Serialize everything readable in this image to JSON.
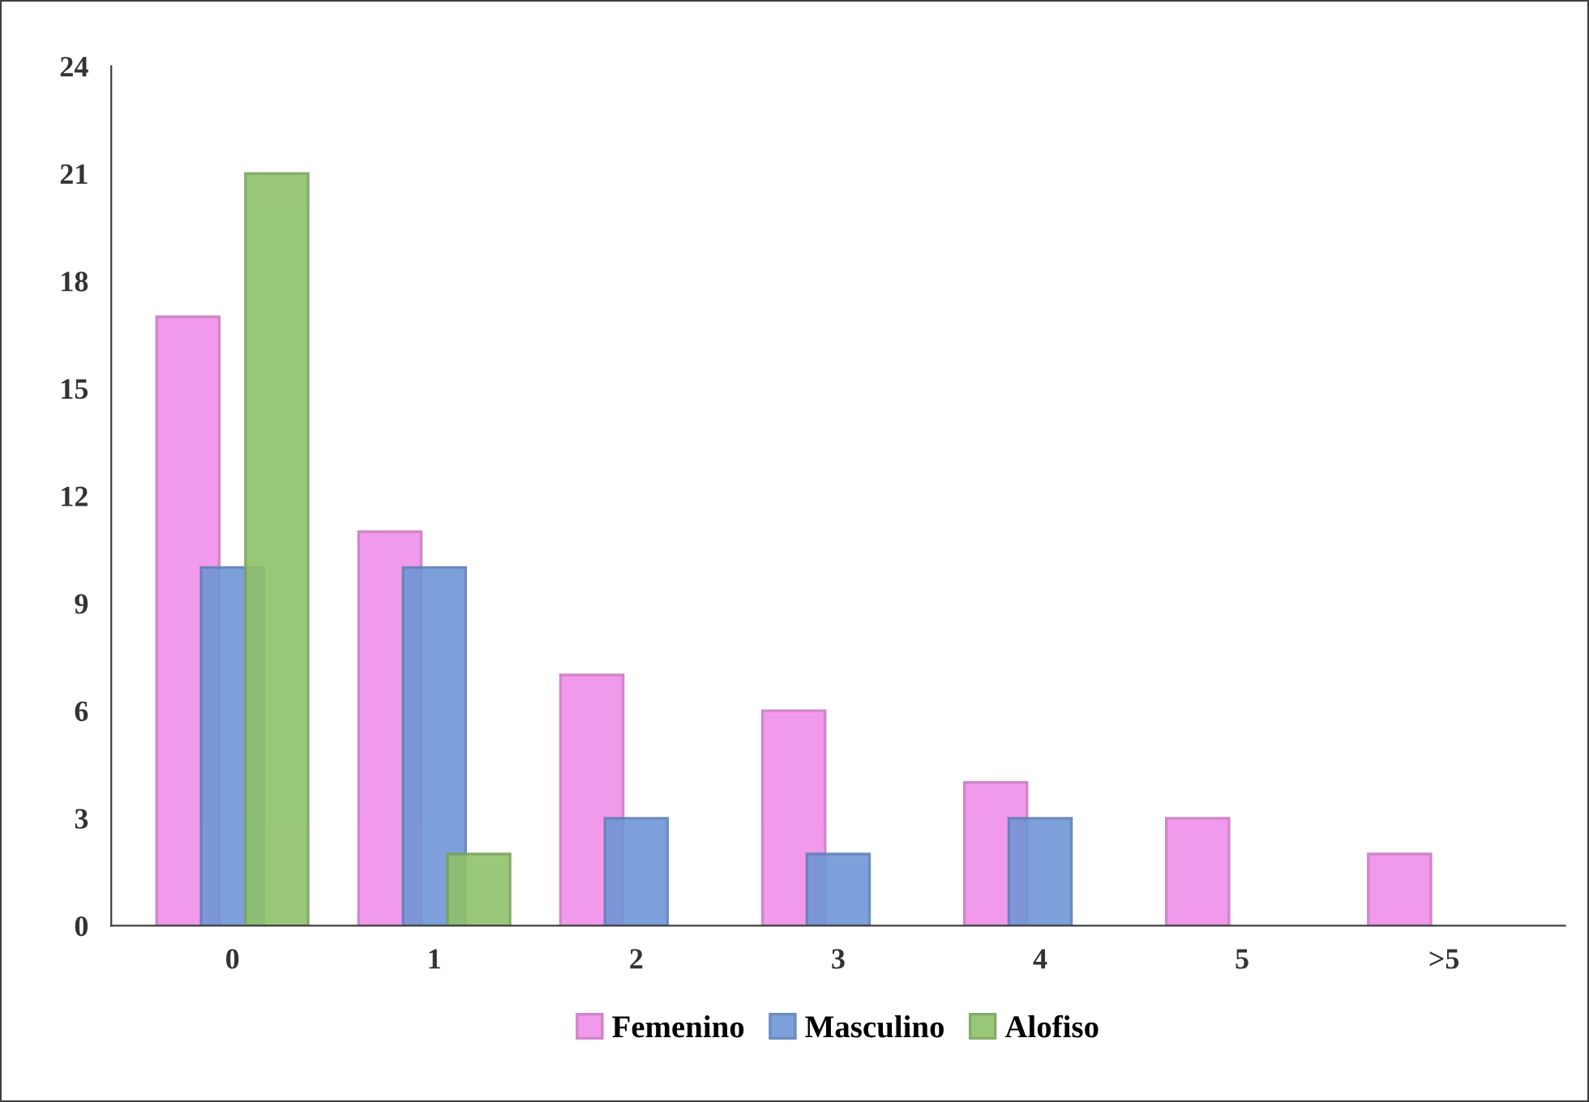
{
  "chart_data": {
    "type": "bar",
    "categories": [
      "0",
      "1",
      "2",
      "3",
      "4",
      "5",
      ">5"
    ],
    "series": [
      {
        "name": "Femenino",
        "color": "#f08ee8",
        "values": [
          17,
          11,
          7,
          6,
          4,
          3,
          2
        ]
      },
      {
        "name": "Masculino",
        "color": "#6f96d6",
        "values": [
          10,
          10,
          3,
          2,
          3,
          null,
          null
        ]
      },
      {
        "name": "Alofiso",
        "color": "#8fc16a",
        "values": [
          21,
          2,
          null,
          null,
          null,
          null,
          null
        ]
      }
    ],
    "ylim": [
      0,
      24
    ],
    "yticks": [
      0,
      3,
      6,
      9,
      12,
      15,
      18,
      21,
      24
    ],
    "grid": false,
    "legend": "bottom"
  }
}
